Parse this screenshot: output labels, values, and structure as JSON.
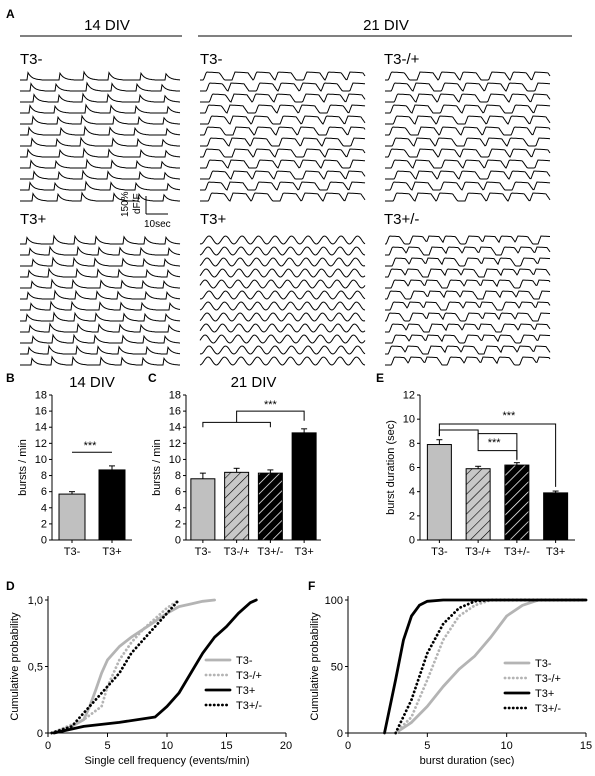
{
  "panel_letters": {
    "A": "A",
    "B": "B",
    "C": "C",
    "D": "D",
    "E": "E",
    "F": "F"
  },
  "panel_a": {
    "group_titles": {
      "div14": "14 DIV",
      "div21": "21 DIV"
    },
    "condition_labels": {
      "top_14": "T3-",
      "top_21a": "T3-",
      "top_21b": "T3-/+",
      "bot_14": "T3+",
      "bot_21a": "T3+",
      "bot_21b": "T3+/-"
    },
    "scale_bar": {
      "y_label_1": "150%",
      "y_label_2": "dF/F",
      "x_label": "10sec"
    },
    "traces_per_block": 12
  },
  "chart_data": [
    {
      "id": "B",
      "type": "bar",
      "title": "14 DIV",
      "xlabel": "",
      "ylabel": "bursts / min",
      "ylim": [
        0,
        18
      ],
      "yticks": [
        0,
        2,
        4,
        6,
        8,
        10,
        12,
        14,
        16,
        18
      ],
      "categories": [
        "T3-",
        "T3+"
      ],
      "values": [
        5.7,
        8.7
      ],
      "errors": [
        0.3,
        0.5
      ],
      "fills": [
        "#c0c0c0",
        "#000000"
      ],
      "hatched": [
        false,
        false
      ],
      "significance": "***"
    },
    {
      "id": "C",
      "type": "bar",
      "title": "21 DIV",
      "xlabel": "",
      "ylabel": "bursts / min",
      "ylim": [
        0,
        18
      ],
      "yticks": [
        0,
        2,
        4,
        6,
        8,
        10,
        12,
        14,
        16,
        18
      ],
      "categories": [
        "T3-",
        "T3-/+",
        "T3+/-",
        "T3+"
      ],
      "values": [
        7.6,
        8.4,
        8.3,
        13.3
      ],
      "errors": [
        0.7,
        0.5,
        0.4,
        0.5
      ],
      "fills": [
        "#c0c0c0",
        "#c0c0c0",
        "#000000",
        "#000000"
      ],
      "hatched": [
        false,
        true,
        true,
        false
      ],
      "significance": "***"
    },
    {
      "id": "E",
      "type": "bar",
      "title": "",
      "xlabel": "",
      "ylabel": "burst duration (sec)",
      "ylim": [
        0,
        12
      ],
      "yticks": [
        0,
        2,
        4,
        6,
        8,
        10,
        12
      ],
      "categories": [
        "T3-",
        "T3-/+",
        "T3+/-",
        "T3+"
      ],
      "values": [
        7.9,
        5.9,
        6.2,
        3.9
      ],
      "errors": [
        0.4,
        0.2,
        0.2,
        0.15
      ],
      "fills": [
        "#c0c0c0",
        "#c0c0c0",
        "#000000",
        "#000000"
      ],
      "hatched": [
        false,
        true,
        true,
        false
      ],
      "significance": [
        "***",
        "***"
      ]
    },
    {
      "id": "D",
      "type": "line",
      "title": "",
      "xlabel": "Single cell frequency (events/min)",
      "ylabel": "Cumulative probability",
      "xlim": [
        0,
        20
      ],
      "ylim": [
        0,
        1
      ],
      "xticks": [
        0,
        5,
        10,
        15,
        20
      ],
      "yticks": [
        "0",
        "0,5",
        "1,0"
      ],
      "ytick_values": [
        0,
        0.5,
        1
      ],
      "series": [
        {
          "name": "T3-",
          "color": "#b4b4b4",
          "dash": "solid",
          "points": [
            [
              0.3,
              0
            ],
            [
              2,
              0.05
            ],
            [
              3,
              0.1
            ],
            [
              3.5,
              0.2
            ],
            [
              4,
              0.32
            ],
            [
              4.5,
              0.45
            ],
            [
              5,
              0.55
            ],
            [
              6,
              0.65
            ],
            [
              7,
              0.72
            ],
            [
              8,
              0.78
            ],
            [
              9,
              0.84
            ],
            [
              10,
              0.9
            ],
            [
              11,
              0.95
            ],
            [
              12,
              0.97
            ],
            [
              13,
              0.99
            ],
            [
              14,
              1
            ]
          ]
        },
        {
          "name": "T3-/+",
          "color": "#b4b4b4",
          "dash": "dotted",
          "points": [
            [
              0.3,
              0
            ],
            [
              3,
              0.1
            ],
            [
              4.5,
              0.2
            ],
            [
              5,
              0.35
            ],
            [
              5.5,
              0.45
            ],
            [
              6,
              0.55
            ],
            [
              7,
              0.68
            ],
            [
              8,
              0.78
            ],
            [
              9,
              0.86
            ],
            [
              10,
              0.94
            ],
            [
              11,
              1
            ]
          ]
        },
        {
          "name": "T3+",
          "color": "#000000",
          "dash": "solid",
          "points": [
            [
              0.5,
              0
            ],
            [
              3,
              0.05
            ],
            [
              6,
              0.08
            ],
            [
              9,
              0.12
            ],
            [
              10,
              0.2
            ],
            [
              11,
              0.3
            ],
            [
              12,
              0.45
            ],
            [
              13,
              0.6
            ],
            [
              14,
              0.72
            ],
            [
              15,
              0.8
            ],
            [
              16,
              0.9
            ],
            [
              17,
              0.98
            ],
            [
              17.5,
              1
            ]
          ]
        },
        {
          "name": "T3+/-",
          "color": "#000000",
          "dash": "dotted",
          "points": [
            [
              0.3,
              0
            ],
            [
              2,
              0.05
            ],
            [
              3,
              0.15
            ],
            [
              4,
              0.25
            ],
            [
              5,
              0.35
            ],
            [
              6,
              0.45
            ],
            [
              7,
              0.6
            ],
            [
              8,
              0.7
            ],
            [
              9,
              0.8
            ],
            [
              10,
              0.9
            ],
            [
              11,
              1
            ]
          ]
        }
      ]
    },
    {
      "id": "F",
      "type": "line",
      "title": "",
      "xlabel": "burst duration (sec)",
      "ylabel": "Cumulative probability",
      "xlim": [
        0,
        15
      ],
      "ylim": [
        0,
        100
      ],
      "xticks": [
        0,
        5,
        10,
        15
      ],
      "yticks": [
        "0",
        "50",
        "100"
      ],
      "ytick_values": [
        0,
        50,
        100
      ],
      "series": [
        {
          "name": "T3-",
          "color": "#b4b4b4",
          "dash": "solid",
          "points": [
            [
              3,
              0
            ],
            [
              4,
              8
            ],
            [
              5,
              20
            ],
            [
              6,
              35
            ],
            [
              7,
              48
            ],
            [
              8,
              58
            ],
            [
              9,
              72
            ],
            [
              10,
              88
            ],
            [
              11,
              96
            ],
            [
              12,
              100
            ],
            [
              15,
              100
            ]
          ]
        },
        {
          "name": "T3-/+",
          "color": "#b4b4b4",
          "dash": "dotted",
          "points": [
            [
              3,
              0
            ],
            [
              4,
              12
            ],
            [
              5,
              40
            ],
            [
              6,
              70
            ],
            [
              7,
              88
            ],
            [
              8,
              96
            ],
            [
              9,
              100
            ],
            [
              15,
              100
            ]
          ]
        },
        {
          "name": "T3+",
          "color": "#000000",
          "dash": "solid",
          "points": [
            [
              2.3,
              0
            ],
            [
              3,
              40
            ],
            [
              3.5,
              70
            ],
            [
              4,
              88
            ],
            [
              4.5,
              96
            ],
            [
              5,
              99
            ],
            [
              6,
              100
            ],
            [
              15,
              100
            ]
          ]
        },
        {
          "name": "T3+/-",
          "color": "#000000",
          "dash": "dotted",
          "points": [
            [
              3,
              0
            ],
            [
              4,
              25
            ],
            [
              5,
              60
            ],
            [
              6,
              82
            ],
            [
              7,
              94
            ],
            [
              8,
              99
            ],
            [
              9,
              100
            ],
            [
              15,
              100
            ]
          ]
        }
      ]
    }
  ]
}
